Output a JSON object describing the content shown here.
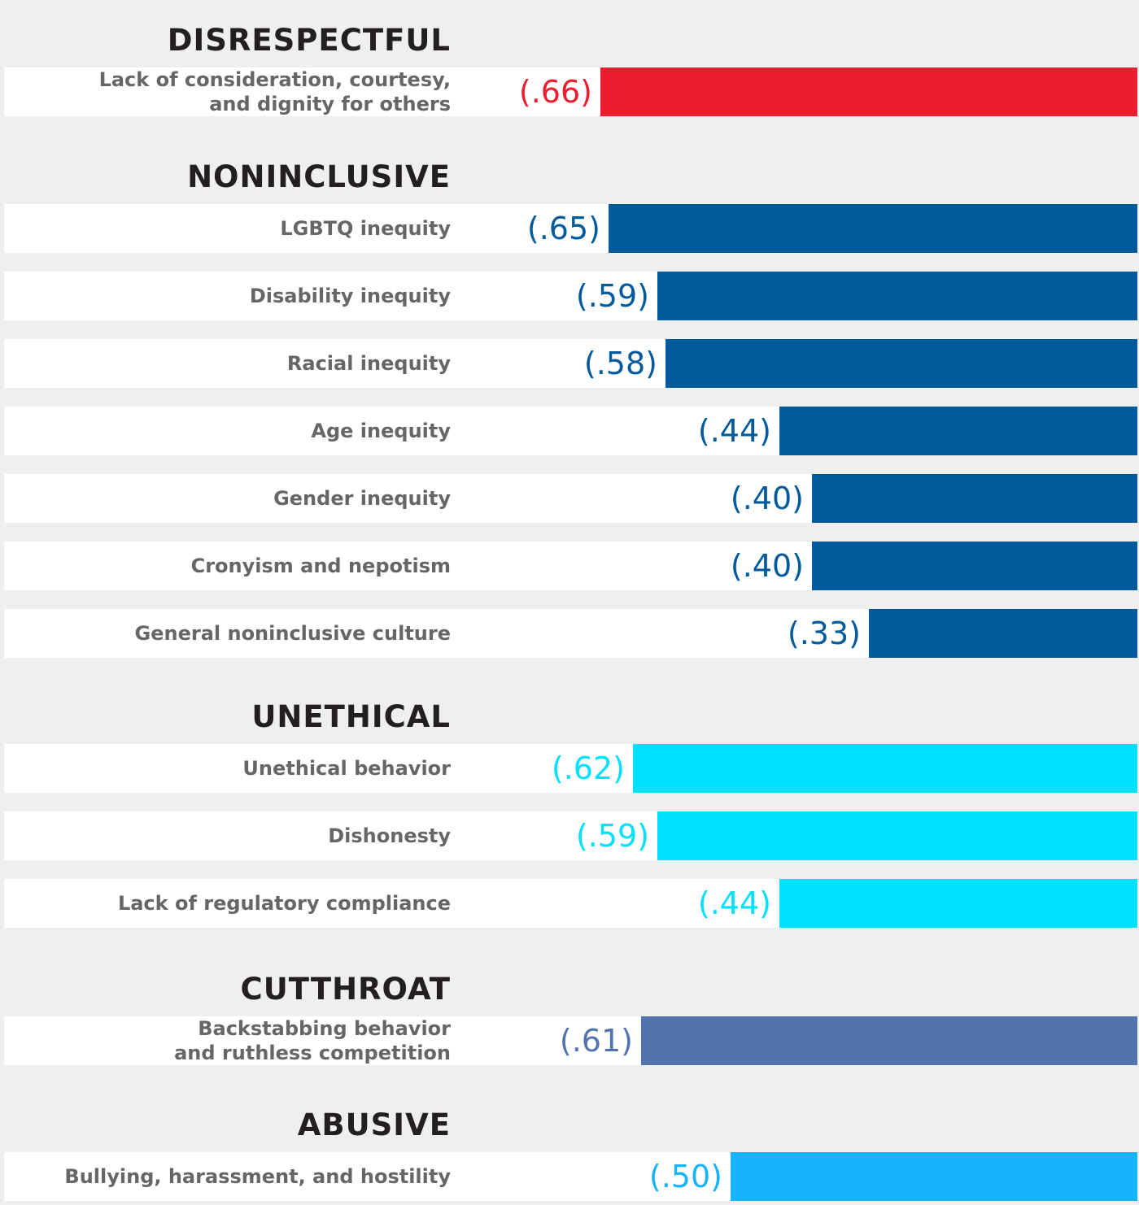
{
  "chart_data": {
    "type": "bar",
    "orientation": "horizontal",
    "xlim": [
      0,
      1
    ],
    "groups": [
      {
        "title": "DISRESPECTFUL",
        "color": "#ed1c2e",
        "items": [
          {
            "label": [
              "Lack of consideration, courtesy,",
              "and dignity for others"
            ],
            "value": 0.66,
            "value_label": "(.66)"
          }
        ]
      },
      {
        "title": "NONINCLUSIVE",
        "color": "#005a9c",
        "items": [
          {
            "label": [
              "LGBTQ inequity"
            ],
            "value": 0.65,
            "value_label": "(.65)"
          },
          {
            "label": [
              "Disability inequity"
            ],
            "value": 0.59,
            "value_label": "(.59)"
          },
          {
            "label": [
              "Racial inequity"
            ],
            "value": 0.58,
            "value_label": "(.58)"
          },
          {
            "label": [
              "Age inequity"
            ],
            "value": 0.44,
            "value_label": "(.44)"
          },
          {
            "label": [
              "Gender inequity"
            ],
            "value": 0.4,
            "value_label": "(.40)"
          },
          {
            "label": [
              "Cronyism and nepotism"
            ],
            "value": 0.4,
            "value_label": "(.40)"
          },
          {
            "label": [
              "General noninclusive culture"
            ],
            "value": 0.33,
            "value_label": "(.33)"
          }
        ]
      },
      {
        "title": "UNETHICAL",
        "color": "#00e0ff",
        "items": [
          {
            "label": [
              "Unethical behavior"
            ],
            "value": 0.62,
            "value_label": "(.62)"
          },
          {
            "label": [
              "Dishonesty"
            ],
            "value": 0.59,
            "value_label": "(.59)"
          },
          {
            "label": [
              "Lack of regulatory compliance"
            ],
            "value": 0.44,
            "value_label": "(.44)"
          }
        ]
      },
      {
        "title": "CUTTHROAT",
        "color": "#5373ac",
        "items": [
          {
            "label": [
              "Backstabbing behavior",
              "and ruthless competition"
            ],
            "value": 0.61,
            "value_label": "(.61)"
          }
        ]
      },
      {
        "title": "ABUSIVE",
        "color": "#16b4fd",
        "items": [
          {
            "label": [
              "Bullying, harassment, and hostility"
            ],
            "value": 0.5,
            "value_label": "(.50)"
          }
        ]
      }
    ]
  }
}
